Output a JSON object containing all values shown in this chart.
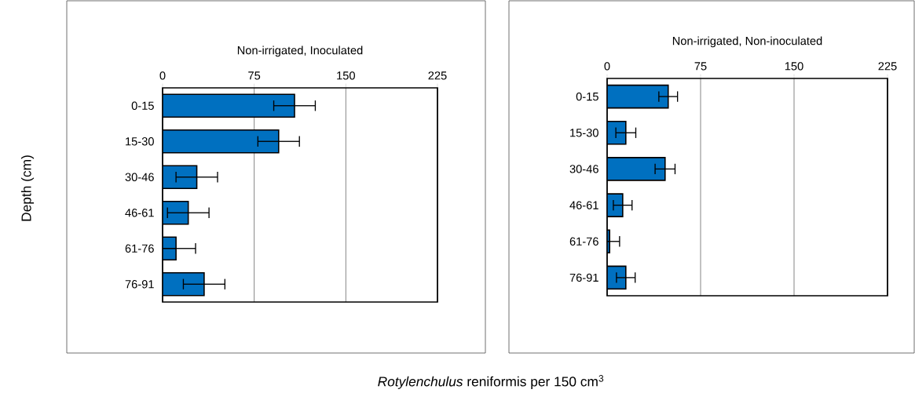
{
  "chart_data": [
    {
      "type": "bar",
      "orientation": "horizontal",
      "title": "Non-irrigated, Inoculated",
      "ylabel": "Depth (cm)",
      "xlabel": "*Rotylenchulus* reniformis per 150 cm$^{3}$",
      "categories": [
        "0-15",
        "15-30",
        "30-46",
        "46-61",
        "61-76",
        "76-91"
      ],
      "values": [
        108,
        95,
        28,
        21,
        11,
        34
      ],
      "errors": [
        17,
        17,
        17,
        17,
        16,
        17
      ],
      "color": "#0070c0",
      "xlim": [
        0,
        225
      ],
      "xticks": [
        0,
        75,
        150,
        225
      ],
      "grid": "x"
    },
    {
      "type": "bar",
      "orientation": "horizontal",
      "title": "Non-irrigated, Non-inoculated",
      "categories": [
        "0-15",
        "15-30",
        "30-46",
        "46-61",
        "61-76",
        "76-91"
      ],
      "values": [
        49,
        15,
        46.5,
        12.5,
        2,
        15
      ],
      "errors": [
        7.5,
        8,
        8,
        7.5,
        8,
        7.5
      ],
      "color": "#0070c0",
      "xlim": [
        0,
        225
      ],
      "xticks": [
        0,
        75,
        150,
        225
      ],
      "grid": "x"
    }
  ]
}
